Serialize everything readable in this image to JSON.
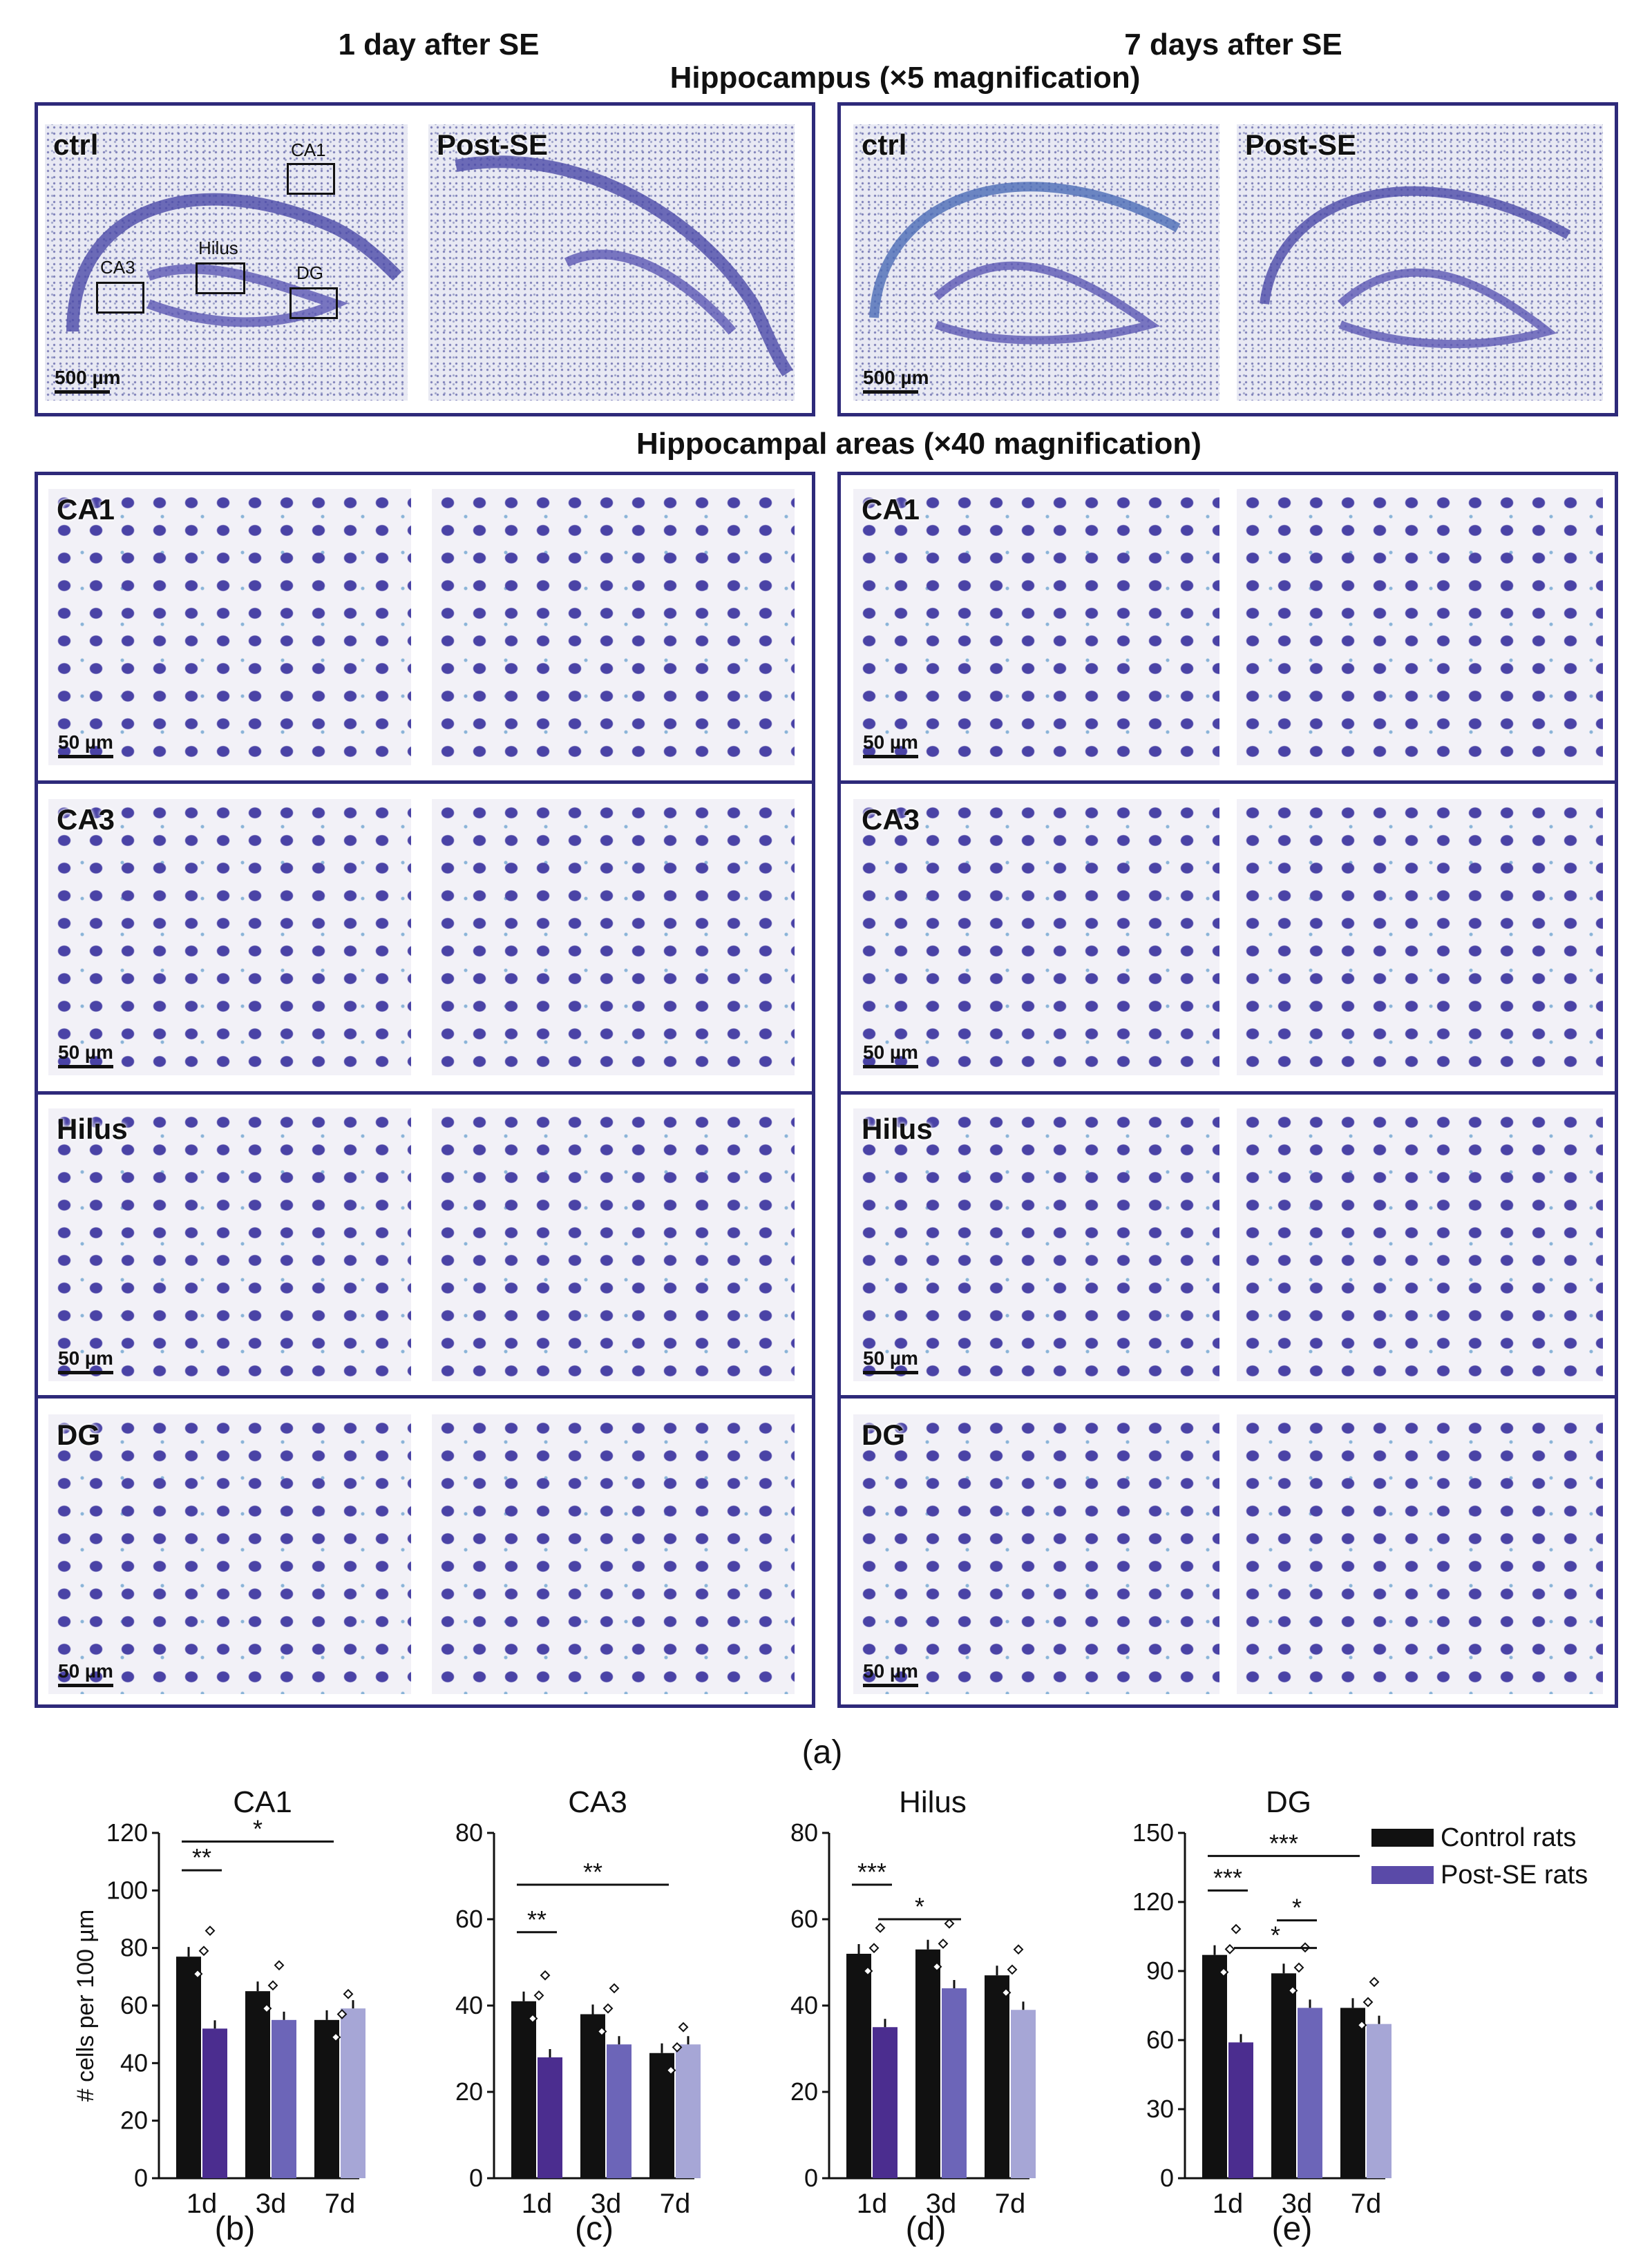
{
  "figure": {
    "headers": {
      "day1": "1 day after SE",
      "day7": "7 days after SE",
      "hippocampus": "Hippocampus (×5 magnification)",
      "areas": "Hippocampal areas (×40 magnification)"
    },
    "panel_labels": {
      "ctrl": "ctrl",
      "post_se": "Post-SE",
      "ca1": "CA1",
      "ca3": "CA3",
      "hilus": "Hilus",
      "dg": "DG"
    },
    "roi_labels": [
      "CA1",
      "Hilus",
      "CA3",
      "DG"
    ],
    "scale_bars": {
      "low": "500 µm",
      "high": "50 µm"
    },
    "sublabels": [
      "(a)",
      "(b)",
      "(c)",
      "(d)",
      "(e)"
    ]
  },
  "legend": {
    "control": "Control rats",
    "post_se": "Post-SE rats"
  },
  "colors": {
    "control": "#111111",
    "post_se_1d": "#4b2d8f",
    "post_se_3d": "#6c65b8",
    "post_se_7d": "#a6a6d6",
    "frame": "#2e2a7a"
  },
  "chart_data": [
    {
      "type": "bar",
      "title": "CA1",
      "ylabel": "# cells per 100 µm",
      "categories": [
        "1d",
        "3d",
        "7d"
      ],
      "ylim": [
        0,
        120
      ],
      "yticks": [
        0,
        20,
        40,
        60,
        80,
        100,
        120
      ],
      "series": [
        {
          "name": "Control rats",
          "values": [
            77,
            65,
            55
          ]
        },
        {
          "name": "Post-SE rats",
          "values": [
            52,
            55,
            59
          ]
        }
      ],
      "significance": [
        {
          "label": "**",
          "level": 107,
          "from": "1d-control",
          "to": "1d-post"
        },
        {
          "label": "*",
          "level": 117,
          "from": "1d-control",
          "to": "7d-control"
        }
      ]
    },
    {
      "type": "bar",
      "title": "CA3",
      "ylabel": "",
      "categories": [
        "1d",
        "3d",
        "7d"
      ],
      "ylim": [
        0,
        80
      ],
      "yticks": [
        0,
        20,
        40,
        60,
        80
      ],
      "series": [
        {
          "name": "Control rats",
          "values": [
            41,
            38,
            29
          ]
        },
        {
          "name": "Post-SE rats",
          "values": [
            28,
            31,
            31
          ]
        }
      ],
      "significance": [
        {
          "label": "**",
          "level": 57,
          "from": "1d-control",
          "to": "1d-post"
        },
        {
          "label": "**",
          "level": 68,
          "from": "1d-control",
          "to": "7d-control"
        }
      ]
    },
    {
      "type": "bar",
      "title": "Hilus",
      "ylabel": "",
      "categories": [
        "1d",
        "3d",
        "7d"
      ],
      "ylim": [
        0,
        80
      ],
      "yticks": [
        0,
        20,
        40,
        60,
        80
      ],
      "series": [
        {
          "name": "Control rats",
          "values": [
            52,
            53,
            47
          ]
        },
        {
          "name": "Post-SE rats",
          "values": [
            35,
            44,
            39
          ]
        }
      ],
      "significance": [
        {
          "label": "***",
          "level": 68,
          "from": "1d-control",
          "to": "1d-post"
        },
        {
          "label": "*",
          "level": 60,
          "from": "1d-post",
          "to": "3d-post"
        }
      ]
    },
    {
      "type": "bar",
      "title": "DG",
      "ylabel": "",
      "categories": [
        "1d",
        "3d",
        "7d"
      ],
      "ylim": [
        0,
        150
      ],
      "yticks": [
        0,
        30,
        60,
        90,
        120,
        150
      ],
      "series": [
        {
          "name": "Control rats",
          "values": [
            97,
            89,
            74
          ]
        },
        {
          "name": "Post-SE rats",
          "values": [
            59,
            74,
            67
          ]
        }
      ],
      "significance": [
        {
          "label": "***",
          "level": 140,
          "from": "1d-control",
          "to": "7d-control"
        },
        {
          "label": "***",
          "level": 125,
          "from": "1d-control",
          "to": "1d-post"
        },
        {
          "label": "*",
          "level": 112,
          "from": "3d-control",
          "to": "3d-post"
        },
        {
          "label": "*",
          "level": 100,
          "from": "1d-post",
          "to": "3d-post"
        }
      ]
    }
  ]
}
